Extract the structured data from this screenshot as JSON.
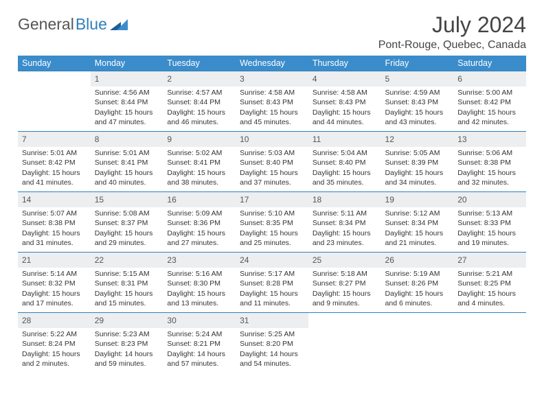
{
  "brand": {
    "name1": "General",
    "name2": "Blue"
  },
  "title": "July 2024",
  "location": "Pont-Rouge, Quebec, Canada",
  "colors": {
    "header_bg": "#3b8ccb",
    "header_text": "#ffffff",
    "row_border": "#2f7fba",
    "daynum_bg": "#eceef0",
    "text": "#333333"
  },
  "weekdays": [
    "Sunday",
    "Monday",
    "Tuesday",
    "Wednesday",
    "Thursday",
    "Friday",
    "Saturday"
  ],
  "weeks": [
    [
      {
        "day": "",
        "lines": [
          "",
          "",
          "",
          ""
        ]
      },
      {
        "day": "1",
        "lines": [
          "Sunrise: 4:56 AM",
          "Sunset: 8:44 PM",
          "Daylight: 15 hours",
          "and 47 minutes."
        ]
      },
      {
        "day": "2",
        "lines": [
          "Sunrise: 4:57 AM",
          "Sunset: 8:44 PM",
          "Daylight: 15 hours",
          "and 46 minutes."
        ]
      },
      {
        "day": "3",
        "lines": [
          "Sunrise: 4:58 AM",
          "Sunset: 8:43 PM",
          "Daylight: 15 hours",
          "and 45 minutes."
        ]
      },
      {
        "day": "4",
        "lines": [
          "Sunrise: 4:58 AM",
          "Sunset: 8:43 PM",
          "Daylight: 15 hours",
          "and 44 minutes."
        ]
      },
      {
        "day": "5",
        "lines": [
          "Sunrise: 4:59 AM",
          "Sunset: 8:43 PM",
          "Daylight: 15 hours",
          "and 43 minutes."
        ]
      },
      {
        "day": "6",
        "lines": [
          "Sunrise: 5:00 AM",
          "Sunset: 8:42 PM",
          "Daylight: 15 hours",
          "and 42 minutes."
        ]
      }
    ],
    [
      {
        "day": "7",
        "lines": [
          "Sunrise: 5:01 AM",
          "Sunset: 8:42 PM",
          "Daylight: 15 hours",
          "and 41 minutes."
        ]
      },
      {
        "day": "8",
        "lines": [
          "Sunrise: 5:01 AM",
          "Sunset: 8:41 PM",
          "Daylight: 15 hours",
          "and 40 minutes."
        ]
      },
      {
        "day": "9",
        "lines": [
          "Sunrise: 5:02 AM",
          "Sunset: 8:41 PM",
          "Daylight: 15 hours",
          "and 38 minutes."
        ]
      },
      {
        "day": "10",
        "lines": [
          "Sunrise: 5:03 AM",
          "Sunset: 8:40 PM",
          "Daylight: 15 hours",
          "and 37 minutes."
        ]
      },
      {
        "day": "11",
        "lines": [
          "Sunrise: 5:04 AM",
          "Sunset: 8:40 PM",
          "Daylight: 15 hours",
          "and 35 minutes."
        ]
      },
      {
        "day": "12",
        "lines": [
          "Sunrise: 5:05 AM",
          "Sunset: 8:39 PM",
          "Daylight: 15 hours",
          "and 34 minutes."
        ]
      },
      {
        "day": "13",
        "lines": [
          "Sunrise: 5:06 AM",
          "Sunset: 8:38 PM",
          "Daylight: 15 hours",
          "and 32 minutes."
        ]
      }
    ],
    [
      {
        "day": "14",
        "lines": [
          "Sunrise: 5:07 AM",
          "Sunset: 8:38 PM",
          "Daylight: 15 hours",
          "and 31 minutes."
        ]
      },
      {
        "day": "15",
        "lines": [
          "Sunrise: 5:08 AM",
          "Sunset: 8:37 PM",
          "Daylight: 15 hours",
          "and 29 minutes."
        ]
      },
      {
        "day": "16",
        "lines": [
          "Sunrise: 5:09 AM",
          "Sunset: 8:36 PM",
          "Daylight: 15 hours",
          "and 27 minutes."
        ]
      },
      {
        "day": "17",
        "lines": [
          "Sunrise: 5:10 AM",
          "Sunset: 8:35 PM",
          "Daylight: 15 hours",
          "and 25 minutes."
        ]
      },
      {
        "day": "18",
        "lines": [
          "Sunrise: 5:11 AM",
          "Sunset: 8:34 PM",
          "Daylight: 15 hours",
          "and 23 minutes."
        ]
      },
      {
        "day": "19",
        "lines": [
          "Sunrise: 5:12 AM",
          "Sunset: 8:34 PM",
          "Daylight: 15 hours",
          "and 21 minutes."
        ]
      },
      {
        "day": "20",
        "lines": [
          "Sunrise: 5:13 AM",
          "Sunset: 8:33 PM",
          "Daylight: 15 hours",
          "and 19 minutes."
        ]
      }
    ],
    [
      {
        "day": "21",
        "lines": [
          "Sunrise: 5:14 AM",
          "Sunset: 8:32 PM",
          "Daylight: 15 hours",
          "and 17 minutes."
        ]
      },
      {
        "day": "22",
        "lines": [
          "Sunrise: 5:15 AM",
          "Sunset: 8:31 PM",
          "Daylight: 15 hours",
          "and 15 minutes."
        ]
      },
      {
        "day": "23",
        "lines": [
          "Sunrise: 5:16 AM",
          "Sunset: 8:30 PM",
          "Daylight: 15 hours",
          "and 13 minutes."
        ]
      },
      {
        "day": "24",
        "lines": [
          "Sunrise: 5:17 AM",
          "Sunset: 8:28 PM",
          "Daylight: 15 hours",
          "and 11 minutes."
        ]
      },
      {
        "day": "25",
        "lines": [
          "Sunrise: 5:18 AM",
          "Sunset: 8:27 PM",
          "Daylight: 15 hours",
          "and 9 minutes."
        ]
      },
      {
        "day": "26",
        "lines": [
          "Sunrise: 5:19 AM",
          "Sunset: 8:26 PM",
          "Daylight: 15 hours",
          "and 6 minutes."
        ]
      },
      {
        "day": "27",
        "lines": [
          "Sunrise: 5:21 AM",
          "Sunset: 8:25 PM",
          "Daylight: 15 hours",
          "and 4 minutes."
        ]
      }
    ],
    [
      {
        "day": "28",
        "lines": [
          "Sunrise: 5:22 AM",
          "Sunset: 8:24 PM",
          "Daylight: 15 hours",
          "and 2 minutes."
        ]
      },
      {
        "day": "29",
        "lines": [
          "Sunrise: 5:23 AM",
          "Sunset: 8:23 PM",
          "Daylight: 14 hours",
          "and 59 minutes."
        ]
      },
      {
        "day": "30",
        "lines": [
          "Sunrise: 5:24 AM",
          "Sunset: 8:21 PM",
          "Daylight: 14 hours",
          "and 57 minutes."
        ]
      },
      {
        "day": "31",
        "lines": [
          "Sunrise: 5:25 AM",
          "Sunset: 8:20 PM",
          "Daylight: 14 hours",
          "and 54 minutes."
        ]
      },
      {
        "day": "",
        "lines": [
          "",
          "",
          "",
          ""
        ]
      },
      {
        "day": "",
        "lines": [
          "",
          "",
          "",
          ""
        ]
      },
      {
        "day": "",
        "lines": [
          "",
          "",
          "",
          ""
        ]
      }
    ]
  ]
}
